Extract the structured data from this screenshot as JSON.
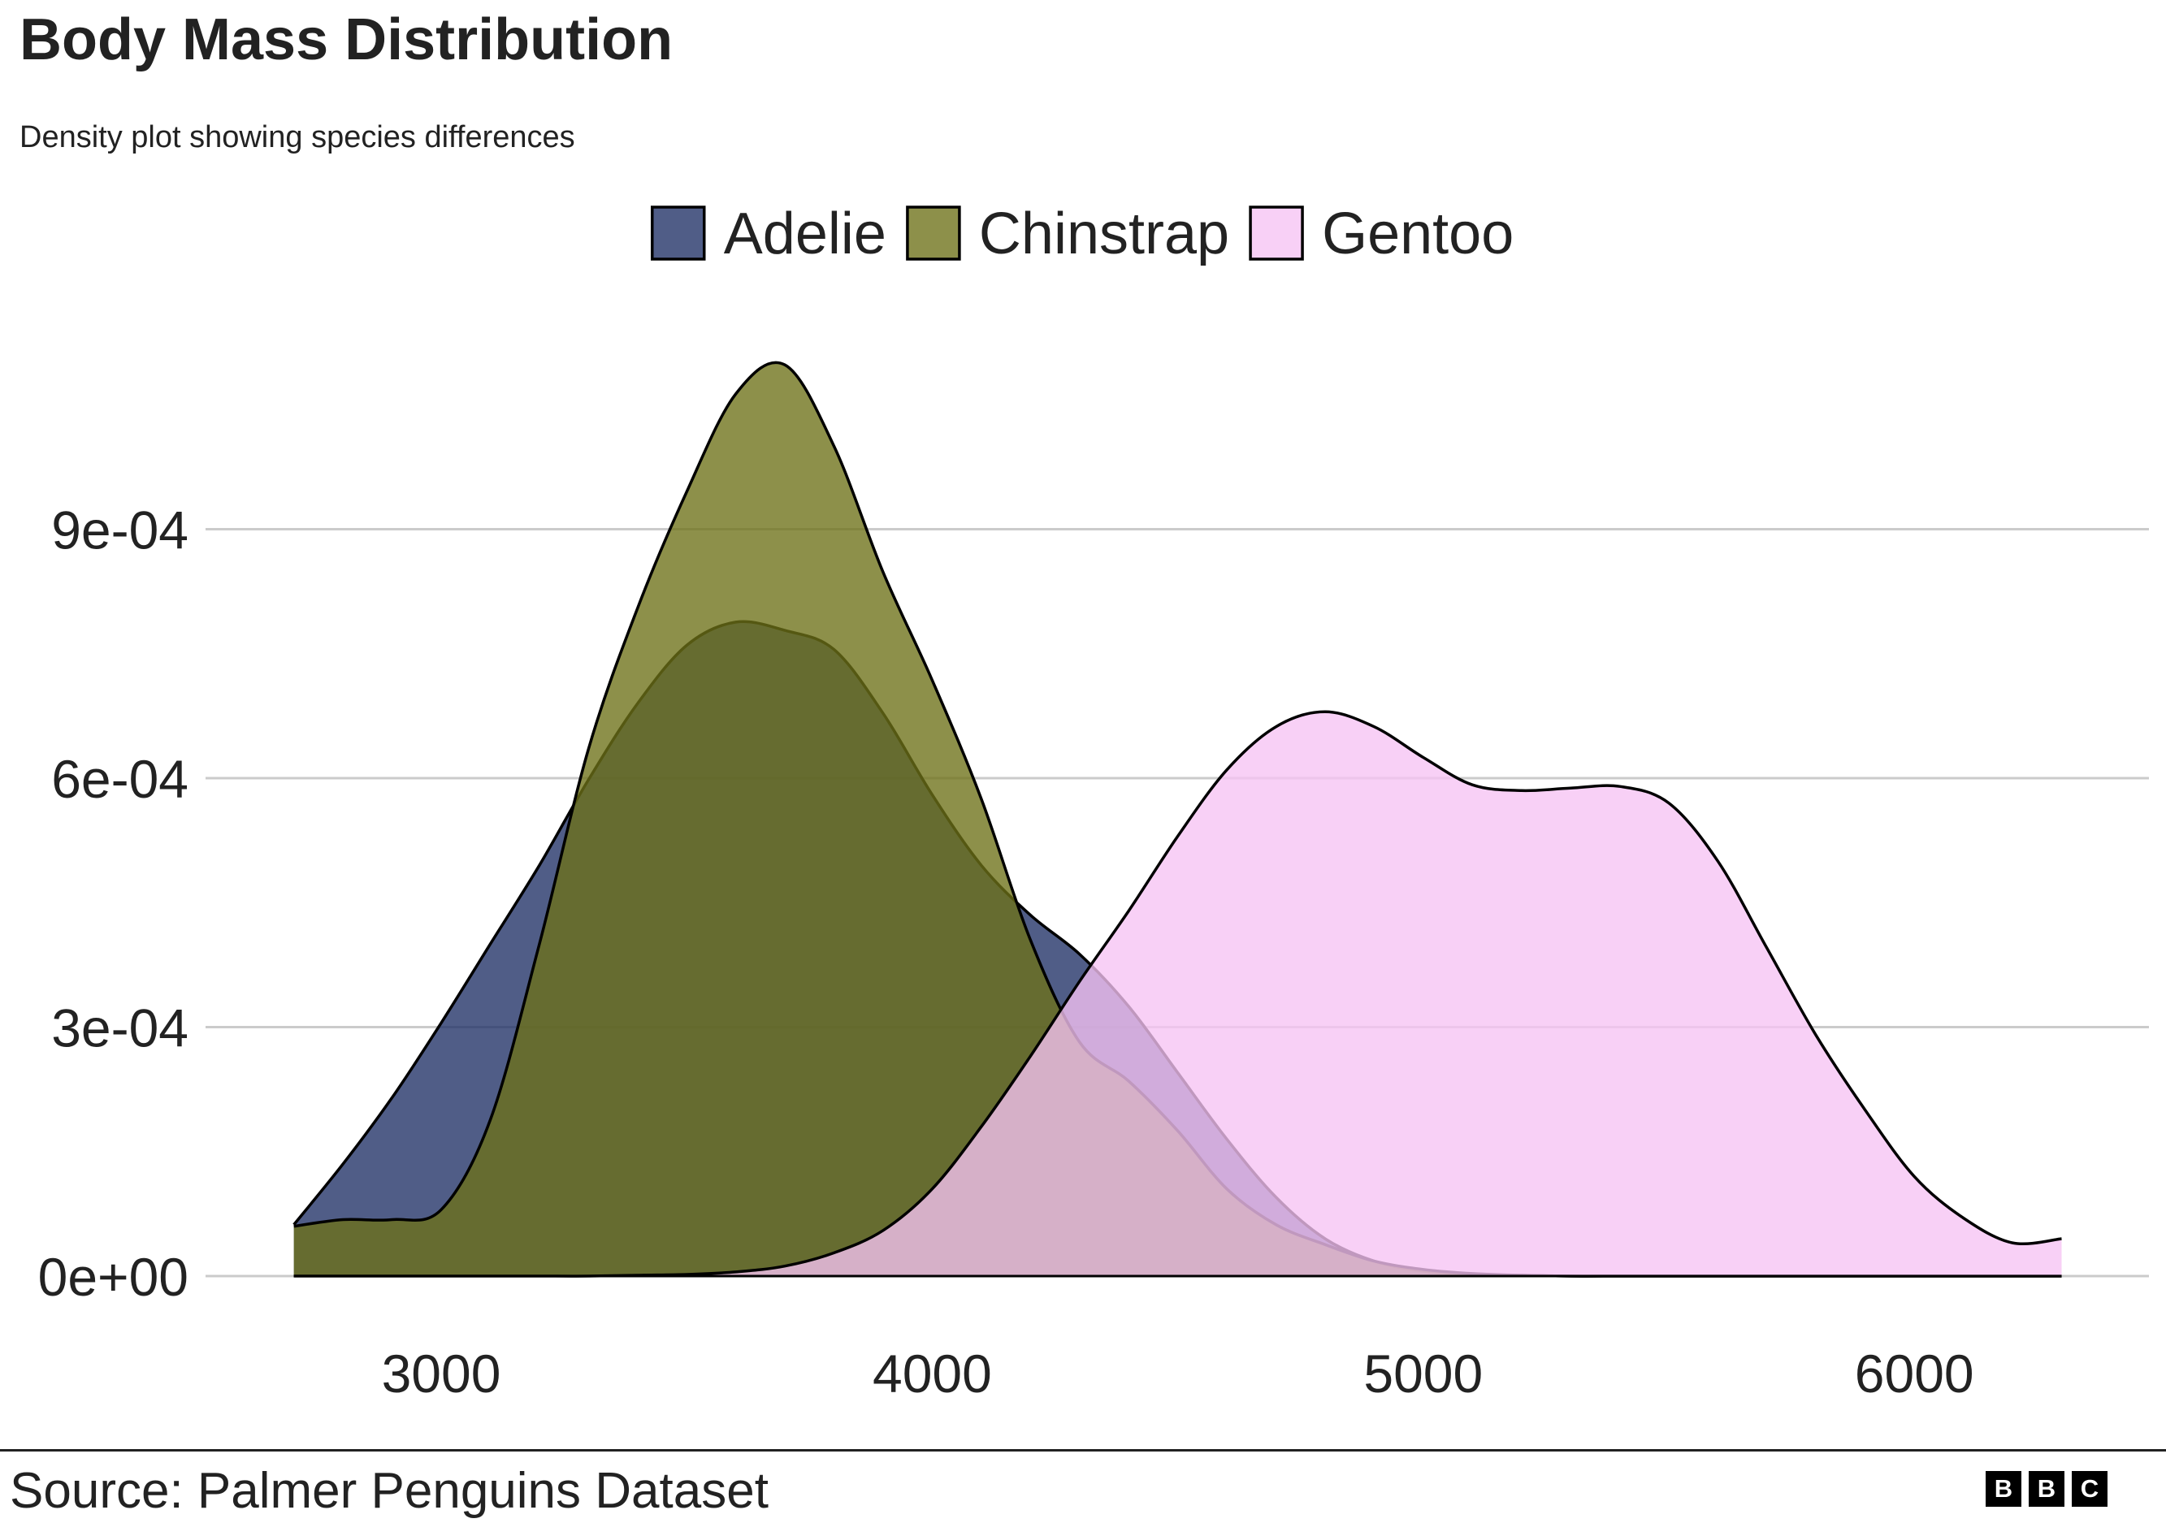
{
  "title": "Body Mass Distribution",
  "subtitle": "Density plot showing species differences",
  "source": "Source: Palmer Penguins Dataset",
  "logo": {
    "letters": [
      "B",
      "B",
      "C"
    ]
  },
  "colors": {
    "adelie": "#1F3065",
    "chinstrap": "#6D7117",
    "gentoo": "#F6C3F4",
    "outline": "#000000",
    "gridline": "#CBCBCB",
    "text": "#222222"
  },
  "chart_data": {
    "type": "area",
    "subtype": "density",
    "title": "Body Mass Distribution",
    "subtitle": "Density plot showing species differences",
    "xlabel": "",
    "ylabel": "",
    "xlim": [
      2520,
      6500
    ],
    "ylim": [
      0,
      0.00113
    ],
    "x_ticks": [
      3000,
      4000,
      5000,
      6000
    ],
    "y_ticks": [
      0,
      0.0003,
      0.0006,
      0.0009
    ],
    "y_tick_labels": [
      "0e+00",
      "3e-04",
      "6e-04",
      "9e-04"
    ],
    "grid": "horizontal",
    "legend_position": "top",
    "opacity": 0.78,
    "series": [
      {
        "name": "Adelie",
        "color": "#1F3065",
        "x": [
          2700,
          2800,
          2900,
          3000,
          3100,
          3200,
          3300,
          3400,
          3500,
          3600,
          3700,
          3800,
          3900,
          4000,
          4100,
          4200,
          4300,
          4400,
          4500,
          4600,
          4700,
          4800,
          4900,
          5000,
          5100,
          5200,
          5300,
          5400,
          5500,
          5600,
          5700,
          5800,
          5900,
          6000,
          6100,
          6200,
          6300
        ],
        "y": [
          6.2e-05,
          0.000135,
          0.000215,
          0.000305,
          0.0004,
          0.000495,
          0.000598,
          0.00069,
          0.00076,
          0.000788,
          0.000778,
          0.000755,
          0.000678,
          0.00058,
          0.000495,
          0.000435,
          0.000388,
          0.000325,
          0.000245,
          0.000165,
          9.5e-05,
          4.5e-05,
          1.8e-05,
          6e-06,
          2e-06,
          1e-06,
          0,
          0,
          0,
          0,
          0,
          0,
          0,
          0,
          0,
          0,
          0
        ]
      },
      {
        "name": "Chinstrap",
        "color": "#6D7117",
        "x": [
          2700,
          2800,
          2900,
          3000,
          3100,
          3200,
          3300,
          3400,
          3500,
          3600,
          3700,
          3800,
          3900,
          4000,
          4100,
          4200,
          4300,
          4400,
          4500,
          4600,
          4700,
          4800,
          4900,
          5000,
          5100,
          5200,
          5300,
          5400,
          5500,
          5600,
          5700,
          5800,
          5900,
          6000,
          6100,
          6200,
          6300
        ],
        "y": [
          6e-05,
          6.8e-05,
          6.8e-05,
          8e-05,
          0.000188,
          0.0004,
          0.000635,
          0.000805,
          0.000945,
          0.001063,
          0.001098,
          0.001,
          0.000848,
          0.000718,
          0.000575,
          0.000405,
          0.000282,
          0.000235,
          0.000175,
          0.000105,
          6.2e-05,
          3.8e-05,
          1.8e-05,
          8e-06,
          3e-06,
          1e-06,
          0,
          0,
          0,
          0,
          0,
          0,
          0,
          0,
          0,
          0,
          0
        ]
      },
      {
        "name": "Gentoo",
        "color": "#F6C3F4",
        "x": [
          2700,
          2800,
          2900,
          3000,
          3100,
          3200,
          3300,
          3400,
          3500,
          3600,
          3700,
          3800,
          3900,
          4000,
          4100,
          4200,
          4300,
          4400,
          4500,
          4600,
          4700,
          4800,
          4900,
          5000,
          5100,
          5200,
          5300,
          5400,
          5500,
          5600,
          5700,
          5800,
          5900,
          6000,
          6100,
          6200,
          6300
        ],
        "y": [
          0,
          0,
          0,
          0,
          0,
          0,
          0,
          1e-06,
          2e-06,
          5e-06,
          1.2e-05,
          2.8e-05,
          5.5e-05,
          0.000105,
          0.00018,
          0.000265,
          0.000355,
          0.00044,
          0.00053,
          0.00061,
          0.000662,
          0.00068,
          0.000662,
          0.000625,
          0.000592,
          0.000585,
          0.000588,
          0.00059,
          0.00057,
          0.0005,
          0.000395,
          0.00029,
          0.0002,
          0.00012,
          7e-05,
          4e-05,
          4.5e-05
        ]
      }
    ]
  }
}
